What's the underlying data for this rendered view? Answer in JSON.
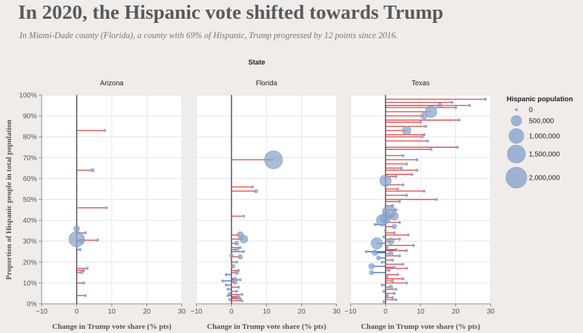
{
  "header": {
    "title": "In 2020, the Hispanic vote shifted towards Trump",
    "subtitle": "In Miami-Dade county (Florida), a county with 69% of Hispanic, Trump progressed by 12 points since 2016."
  },
  "chart_data": {
    "type": "scatter",
    "facet_label": "State",
    "xlabel": "Change in Trump vote share (% pts)",
    "ylabel": "Proportion of Hispanic people in total population",
    "xlim": [
      -10,
      30
    ],
    "ylim": [
      0,
      100
    ],
    "xticks": [
      -10,
      0,
      10,
      20,
      30
    ],
    "yticks": [
      0,
      10,
      20,
      30,
      40,
      50,
      60,
      70,
      80,
      90,
      100
    ],
    "ytick_labels": [
      "0%",
      "10%",
      "20%",
      "30%",
      "40%",
      "50%",
      "60%",
      "70%",
      "80%",
      "90%",
      "100%"
    ],
    "colors": {
      "positive": "#e24a4a",
      "negative": "#3a6fd8",
      "bubble": "#8aa5cc",
      "zero_line": "#555555",
      "background": "#f0ecea",
      "panel": "#ffffff"
    },
    "legend": {
      "title": "Hispanic population",
      "position": "right",
      "entries": [
        {
          "label": "0",
          "value": 0
        },
        {
          "label": "500,000",
          "value": 500000
        },
        {
          "label": "1,000,000",
          "value": 1000000
        },
        {
          "label": "1,500,000",
          "value": 1500000
        },
        {
          "label": "2,000,000",
          "value": 2000000
        }
      ]
    },
    "facets": [
      {
        "name": "Arizona",
        "points": [
          {
            "x": 8,
            "y": 83,
            "pop": 30000
          },
          {
            "x": 4.5,
            "y": 64,
            "pop": 60000
          },
          {
            "x": 8.5,
            "y": 46,
            "pop": 20000
          },
          {
            "x": 0,
            "y": 36,
            "pop": 150000
          },
          {
            "x": 2.5,
            "y": 34,
            "pop": 20000
          },
          {
            "x": 0,
            "y": 31,
            "pop": 1100000
          },
          {
            "x": 6,
            "y": 30.5,
            "pop": 30000
          },
          {
            "x": 1.5,
            "y": 30,
            "pop": 100000
          },
          {
            "x": 1,
            "y": 26,
            "pop": 20000
          },
          {
            "x": 3,
            "y": 17,
            "pop": 20000
          },
          {
            "x": 2,
            "y": 16,
            "pop": 20000
          },
          {
            "x": 1.5,
            "y": 15,
            "pop": 40000
          },
          {
            "x": 2,
            "y": 10,
            "pop": 20000
          },
          {
            "x": 2.5,
            "y": 4,
            "pop": 20000
          }
        ]
      },
      {
        "name": "Florida",
        "points": [
          {
            "x": 12,
            "y": 69,
            "pop": 1500000
          },
          {
            "x": 6,
            "y": 56,
            "pop": 30000
          },
          {
            "x": 7,
            "y": 54,
            "pop": 60000
          },
          {
            "x": 3.5,
            "y": 42,
            "pop": 20000
          },
          {
            "x": 2.5,
            "y": 33,
            "pop": 200000
          },
          {
            "x": 3.5,
            "y": 31,
            "pop": 300000
          },
          {
            "x": 1.5,
            "y": 29,
            "pop": 80000
          },
          {
            "x": 2.5,
            "y": 27,
            "pop": 20000
          },
          {
            "x": 1.5,
            "y": 26,
            "pop": 100000
          },
          {
            "x": 3.5,
            "y": 25,
            "pop": 20000
          },
          {
            "x": 0,
            "y": 23,
            "pop": 60000
          },
          {
            "x": 2.5,
            "y": 22.5,
            "pop": 100000
          },
          {
            "x": 1.5,
            "y": 20,
            "pop": 20000
          },
          {
            "x": 0.5,
            "y": 18,
            "pop": 60000
          },
          {
            "x": 2,
            "y": 16,
            "pop": 20000
          },
          {
            "x": 1.5,
            "y": 15,
            "pop": 80000
          },
          {
            "x": -1.5,
            "y": 14,
            "pop": 20000
          },
          {
            "x": 1,
            "y": 12,
            "pop": 60000
          },
          {
            "x": 2.5,
            "y": 11.5,
            "pop": 20000
          },
          {
            "x": -2.5,
            "y": 11,
            "pop": 20000
          },
          {
            "x": 1,
            "y": 10.5,
            "pop": 100000
          },
          {
            "x": -1.5,
            "y": 9,
            "pop": 20000
          },
          {
            "x": 2,
            "y": 8,
            "pop": 20000
          },
          {
            "x": -1,
            "y": 7,
            "pop": 20000
          },
          {
            "x": 1.5,
            "y": 6,
            "pop": 20000
          },
          {
            "x": -0.5,
            "y": 5,
            "pop": 20000
          },
          {
            "x": 3,
            "y": 4.5,
            "pop": 20000
          },
          {
            "x": -1,
            "y": 4,
            "pop": 20000
          },
          {
            "x": 2,
            "y": 3.5,
            "pop": 20000
          },
          {
            "x": 1.5,
            "y": 3,
            "pop": 80000
          },
          {
            "x": 2.5,
            "y": 2.5,
            "pop": 20000
          },
          {
            "x": -0.5,
            "y": 2,
            "pop": 20000
          },
          {
            "x": 3,
            "y": 1.5,
            "pop": 20000
          }
        ]
      },
      {
        "name": "Texas",
        "points": [
          {
            "x": 28.5,
            "y": 98,
            "pop": 20000
          },
          {
            "x": 19,
            "y": 96.5,
            "pop": 20000
          },
          {
            "x": 15.5,
            "y": 95,
            "pop": 100000
          },
          {
            "x": 24,
            "y": 95,
            "pop": 30000
          },
          {
            "x": 20,
            "y": 94,
            "pop": 20000
          },
          {
            "x": 13,
            "y": 92,
            "pop": 600000
          },
          {
            "x": 11,
            "y": 90,
            "pop": 200000
          },
          {
            "x": 21,
            "y": 88,
            "pop": 20000
          },
          {
            "x": 10,
            "y": 87,
            "pop": 20000
          },
          {
            "x": 11.5,
            "y": 85,
            "pop": 20000
          },
          {
            "x": 6,
            "y": 83,
            "pop": 350000
          },
          {
            "x": 11,
            "y": 81,
            "pop": 20000
          },
          {
            "x": 10.5,
            "y": 80,
            "pop": 20000
          },
          {
            "x": 12,
            "y": 78,
            "pop": 20000
          },
          {
            "x": 20.5,
            "y": 75,
            "pop": 20000
          },
          {
            "x": 13,
            "y": 74,
            "pop": 20000
          },
          {
            "x": 5,
            "y": 71,
            "pop": 20000
          },
          {
            "x": 9,
            "y": 69,
            "pop": 20000
          },
          {
            "x": 6,
            "y": 67,
            "pop": 20000
          },
          {
            "x": 4.5,
            "y": 65,
            "pop": 20000
          },
          {
            "x": 9,
            "y": 64,
            "pop": 20000
          },
          {
            "x": 7.5,
            "y": 62,
            "pop": 30000
          },
          {
            "x": 3,
            "y": 61,
            "pop": 20000
          },
          {
            "x": 0,
            "y": 59,
            "pop": 600000
          },
          {
            "x": 5,
            "y": 57,
            "pop": 20000
          },
          {
            "x": 3.5,
            "y": 55,
            "pop": 20000
          },
          {
            "x": 11,
            "y": 54,
            "pop": 20000
          },
          {
            "x": 6,
            "y": 52,
            "pop": 20000
          },
          {
            "x": 14.5,
            "y": 50,
            "pop": 20000
          },
          {
            "x": 4,
            "y": 49,
            "pop": 20000
          },
          {
            "x": 2,
            "y": 47,
            "pop": 20000
          },
          {
            "x": 3,
            "y": 45,
            "pop": 20000
          },
          {
            "x": 1,
            "y": 44,
            "pop": 800000
          },
          {
            "x": 2.5,
            "y": 42,
            "pop": 300000
          },
          {
            "x": 0,
            "y": 41,
            "pop": 500000
          },
          {
            "x": -1,
            "y": 40,
            "pop": 600000
          },
          {
            "x": 4,
            "y": 39,
            "pop": 20000
          },
          {
            "x": -3,
            "y": 38,
            "pop": 30000
          },
          {
            "x": 2.5,
            "y": 37,
            "pop": 100000
          },
          {
            "x": 0,
            "y": 35,
            "pop": 20000
          },
          {
            "x": 2.5,
            "y": 34,
            "pop": 20000
          },
          {
            "x": 6.5,
            "y": 33,
            "pop": 20000
          },
          {
            "x": -0.5,
            "y": 32,
            "pop": 20000
          },
          {
            "x": 4,
            "y": 31,
            "pop": 20000
          },
          {
            "x": 1.5,
            "y": 30,
            "pop": 200000
          },
          {
            "x": -2.5,
            "y": 29,
            "pop": 600000
          },
          {
            "x": 8,
            "y": 28,
            "pop": 20000
          },
          {
            "x": 0.5,
            "y": 27,
            "pop": 20000
          },
          {
            "x": 3,
            "y": 26,
            "pop": 20000
          },
          {
            "x": -5.5,
            "y": 25,
            "pop": 20000
          },
          {
            "x": 6,
            "y": 25.5,
            "pop": 20000
          },
          {
            "x": -3,
            "y": 24.5,
            "pop": 150000
          },
          {
            "x": 1.5,
            "y": 24,
            "pop": 100000
          },
          {
            "x": 4,
            "y": 23,
            "pop": 20000
          },
          {
            "x": -2,
            "y": 22,
            "pop": 80000
          },
          {
            "x": 2,
            "y": 21,
            "pop": 20000
          },
          {
            "x": -1,
            "y": 20,
            "pop": 20000
          },
          {
            "x": 5,
            "y": 19,
            "pop": 20000
          },
          {
            "x": -4,
            "y": 18,
            "pop": 150000
          },
          {
            "x": 2.5,
            "y": 17.5,
            "pop": 20000
          },
          {
            "x": 6,
            "y": 17,
            "pop": 20000
          },
          {
            "x": 1,
            "y": 16,
            "pop": 20000
          },
          {
            "x": -4,
            "y": 15,
            "pop": 100000
          },
          {
            "x": 3.5,
            "y": 14,
            "pop": 20000
          },
          {
            "x": 0.5,
            "y": 13,
            "pop": 20000
          },
          {
            "x": 5,
            "y": 12,
            "pop": 20000
          },
          {
            "x": 2,
            "y": 11,
            "pop": 20000
          },
          {
            "x": 6,
            "y": 10,
            "pop": 20000
          },
          {
            "x": -1,
            "y": 9,
            "pop": 20000
          },
          {
            "x": 1.5,
            "y": 8,
            "pop": 80000
          },
          {
            "x": 3,
            "y": 7,
            "pop": 20000
          },
          {
            "x": -0.5,
            "y": 6,
            "pop": 20000
          },
          {
            "x": 2.5,
            "y": 5,
            "pop": 20000
          },
          {
            "x": 0.5,
            "y": 4,
            "pop": 20000
          },
          {
            "x": 2,
            "y": 3,
            "pop": 20000
          },
          {
            "x": 3,
            "y": 2,
            "pop": 20000
          },
          {
            "x": -0.5,
            "y": 1,
            "pop": 20000
          }
        ]
      }
    ]
  }
}
